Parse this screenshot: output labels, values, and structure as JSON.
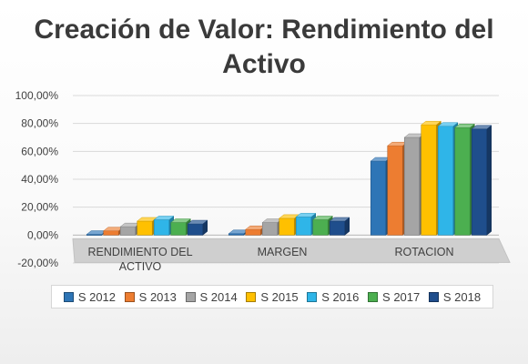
{
  "chart_data": {
    "type": "bar",
    "title": "Creación de Valor: Rendimiento del Activo",
    "title_lines": [
      "Creación de Valor: Rendimiento del",
      "Activo"
    ],
    "categories": [
      "RENDIMIENTO DEL ACTIVO",
      "MARGEN",
      "ROTACION"
    ],
    "category_lines": [
      [
        "RENDIMIENTO DEL",
        "ACTIVO"
      ],
      [
        "MARGEN"
      ],
      [
        "ROTACION"
      ]
    ],
    "series": [
      {
        "name": "S 2012",
        "color": "#2e75b6",
        "values": [
          0.5,
          1.0,
          53.0
        ]
      },
      {
        "name": "S 2013",
        "color": "#ed7d31",
        "values": [
          3.0,
          4.0,
          64.0
        ]
      },
      {
        "name": "S 2014",
        "color": "#a5a5a5",
        "values": [
          6.0,
          9.0,
          70.0
        ]
      },
      {
        "name": "S 2015",
        "color": "#ffc000",
        "values": [
          10.0,
          12.0,
          79.0
        ]
      },
      {
        "name": "S 2016",
        "color": "#2fb5e8",
        "values": [
          11.0,
          13.0,
          78.0
        ]
      },
      {
        "name": "S 2017",
        "color": "#4caf50",
        "values": [
          9.0,
          11.0,
          77.0
        ]
      },
      {
        "name": "S 2018",
        "color": "#1f4e8c",
        "values": [
          8.0,
          10.0,
          76.0
        ]
      }
    ],
    "ylim": [
      -20,
      100
    ],
    "yticks": [
      -20,
      0,
      20,
      40,
      60,
      80,
      100
    ],
    "ytick_labels": [
      "-20,00%",
      "0,00%",
      "20,00%",
      "40,00%",
      "60,00%",
      "80,00%",
      "100,00%"
    ],
    "xlabel": "",
    "ylabel": "",
    "grid": true,
    "legend_position": "bottom",
    "style": "3d-column"
  }
}
